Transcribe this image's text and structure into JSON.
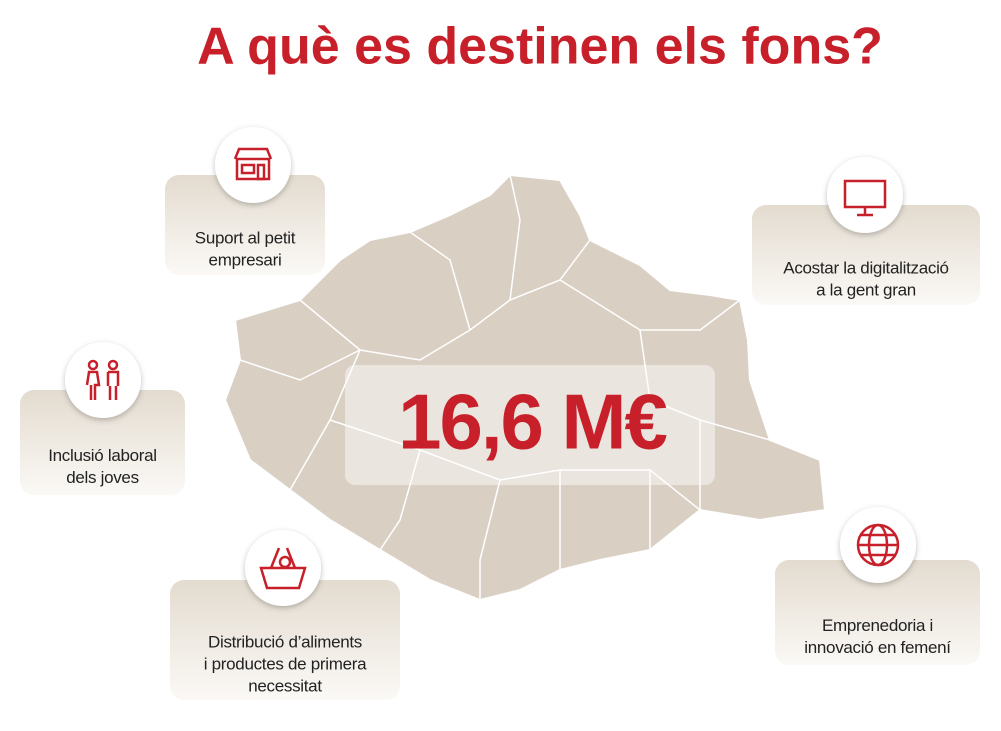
{
  "title": "A què es destinen els fons?",
  "amount": "16,6 M€",
  "items": [
    {
      "lines": [
        "Suport al petit",
        "empresari"
      ]
    },
    {
      "lines": [
        "Acostar la digitalització",
        "a la gent gran"
      ]
    },
    {
      "lines": [
        "Inclusió laboral",
        "dels joves"
      ]
    },
    {
      "lines": [
        "Distribució d’aliments",
        "i productes de primera",
        "necessitat"
      ]
    },
    {
      "lines": [
        "Emprenedoria i",
        "innovació en femení"
      ]
    }
  ]
}
